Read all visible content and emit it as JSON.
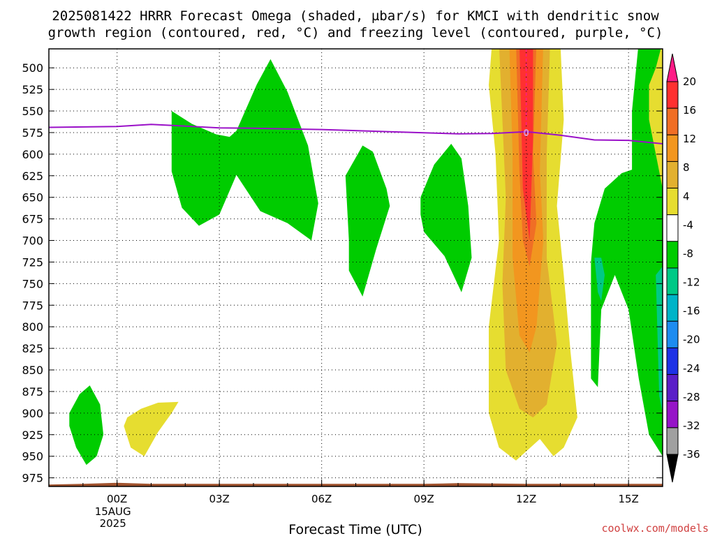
{
  "chart_data": {
    "type": "contour",
    "title_line1": "2025081422 HRRR Forecast Omega (shaded, µbar/s) for KMCI with dendritic snow",
    "title_line2": "growth region (contoured, red, °C) and freezing level (contoured, purple, °C)",
    "xlabel": "Forecast Time (UTC)",
    "x_ticks": [
      {
        "label": "00Z",
        "hour": 2,
        "sub": [
          "15AUG",
          "2025"
        ]
      },
      {
        "label": "03Z",
        "hour": 5,
        "sub": []
      },
      {
        "label": "06Z",
        "hour": 8,
        "sub": []
      },
      {
        "label": "09Z",
        "hour": 11,
        "sub": []
      },
      {
        "label": "12Z",
        "hour": 14,
        "sub": []
      },
      {
        "label": "15Z",
        "hour": 17,
        "sub": []
      }
    ],
    "xlim_hours": [
      0,
      18
    ],
    "ylabel": "",
    "y_axis": "pressure (hPa), inverted",
    "y_ticks": [
      "500",
      "525",
      "550",
      "575",
      "600",
      "625",
      "650",
      "675",
      "700",
      "725",
      "750",
      "775",
      "800",
      "825",
      "850",
      "875",
      "900",
      "925",
      "950",
      "975"
    ],
    "ylim": [
      985,
      478
    ],
    "grid": "dotted",
    "colorbar": {
      "labels": [
        "20",
        "16",
        "12",
        "8",
        "4",
        "-4",
        "-8",
        "-12",
        "-16",
        "-20",
        "-24",
        "-28",
        "-32",
        "-36"
      ],
      "colors": [
        "#ff1b86",
        "#ff3030",
        "#f06e25",
        "#f2961f",
        "#e2b02f",
        "#e6dd30",
        "#ffffff",
        "#00cc00",
        "#00c986",
        "#00b4c8",
        "#1e8cf0",
        "#1e32e6",
        "#5a1ec8",
        "#9614c8",
        "#a0a0a0",
        "#000000"
      ],
      "extend": "both"
    },
    "freezing_level_color": "#9a10c8",
    "freezing_level": [
      [
        0,
        569
      ],
      [
        2,
        568
      ],
      [
        3,
        565.5
      ],
      [
        5,
        569.5
      ],
      [
        6,
        570
      ],
      [
        8,
        571.5
      ],
      [
        10,
        574
      ],
      [
        12,
        576.5
      ],
      [
        13,
        576
      ],
      [
        14,
        574
      ],
      [
        15,
        578
      ],
      [
        16,
        583.5
      ],
      [
        17,
        584
      ],
      [
        18,
        588
      ]
    ],
    "freezing_level_label": "0",
    "terrain_color": "#a0522d",
    "terrain_top_hPa": 982,
    "shaded_regions": [
      {
        "name": "ascent-1",
        "color": "#00cc00",
        "points": [
          [
            3.6,
            550
          ],
          [
            4.2,
            565
          ],
          [
            4.9,
            577
          ],
          [
            5.3,
            580
          ],
          [
            5.5,
            573
          ],
          [
            6.1,
            519
          ],
          [
            6.5,
            490
          ],
          [
            7.0,
            528
          ],
          [
            7.6,
            590
          ],
          [
            7.9,
            657
          ],
          [
            7.7,
            700
          ],
          [
            7.0,
            680
          ],
          [
            6.2,
            666
          ],
          [
            5.5,
            624
          ],
          [
            5.0,
            670
          ],
          [
            4.4,
            683
          ],
          [
            3.9,
            662
          ],
          [
            3.6,
            620
          ]
        ]
      },
      {
        "name": "ascent-2",
        "color": "#00cc00",
        "points": [
          [
            8.7,
            625
          ],
          [
            9.2,
            590
          ],
          [
            9.5,
            597
          ],
          [
            9.9,
            640
          ],
          [
            10.0,
            660
          ],
          [
            9.6,
            710
          ],
          [
            9.2,
            765
          ],
          [
            8.8,
            735
          ],
          [
            8.8,
            700
          ]
        ]
      },
      {
        "name": "ascent-3",
        "color": "#00cc00",
        "points": [
          [
            10.9,
            650
          ],
          [
            11.3,
            612
          ],
          [
            11.8,
            588
          ],
          [
            12.1,
            605
          ],
          [
            12.3,
            660
          ],
          [
            12.4,
            720
          ],
          [
            12.1,
            760
          ],
          [
            11.6,
            718
          ],
          [
            11.0,
            690
          ],
          [
            10.9,
            670
          ]
        ]
      },
      {
        "name": "ascent-4",
        "color": "#00cc00",
        "points": [
          [
            0.6,
            900
          ],
          [
            0.9,
            878
          ],
          [
            1.2,
            868
          ],
          [
            1.5,
            890
          ],
          [
            1.6,
            925
          ],
          [
            1.4,
            950
          ],
          [
            1.1,
            960
          ],
          [
            0.8,
            940
          ],
          [
            0.6,
            915
          ]
        ]
      },
      {
        "name": "ascent-5",
        "color": "#00cc00",
        "points": [
          [
            15.9,
            725
          ],
          [
            16.0,
            680
          ],
          [
            16.3,
            640
          ],
          [
            16.8,
            622
          ],
          [
            17.1,
            618
          ],
          [
            17.1,
            550
          ],
          [
            17.3,
            470
          ],
          [
            18.0,
            470
          ],
          [
            18.0,
            950
          ],
          [
            17.6,
            925
          ],
          [
            17.3,
            860
          ],
          [
            17.0,
            780
          ],
          [
            16.6,
            740
          ],
          [
            16.2,
            780
          ],
          [
            16.1,
            870
          ],
          [
            15.9,
            860
          ]
        ]
      },
      {
        "name": "ascent-6-core",
        "color": "#00c986",
        "points": [
          [
            16.0,
            720
          ],
          [
            16.1,
            760
          ],
          [
            16.2,
            770
          ],
          [
            16.3,
            740
          ],
          [
            16.2,
            720
          ]
        ]
      },
      {
        "name": "ascent-7-right",
        "color": "#00c986",
        "points": [
          [
            17.8,
            740
          ],
          [
            18.0,
            730
          ],
          [
            18.0,
            900
          ],
          [
            17.9,
            880
          ]
        ]
      },
      {
        "name": "sink-1",
        "color": "#e6dd30",
        "points": [
          [
            2.3,
            905
          ],
          [
            2.7,
            895
          ],
          [
            3.2,
            888
          ],
          [
            3.8,
            887
          ],
          [
            3.6,
            900
          ],
          [
            3.2,
            922
          ],
          [
            2.8,
            950
          ],
          [
            2.4,
            940
          ],
          [
            2.2,
            915
          ]
        ]
      },
      {
        "name": "sink-main",
        "color": "#e6dd30",
        "points": [
          [
            13.0,
            470
          ],
          [
            15.0,
            470
          ],
          [
            15.1,
            560
          ],
          [
            14.9,
            660
          ],
          [
            15.1,
            740
          ],
          [
            15.3,
            830
          ],
          [
            15.5,
            905
          ],
          [
            15.1,
            940
          ],
          [
            14.8,
            950
          ],
          [
            14.4,
            930
          ],
          [
            13.7,
            955
          ],
          [
            13.2,
            940
          ],
          [
            12.9,
            900
          ],
          [
            12.9,
            800
          ],
          [
            13.2,
            700
          ],
          [
            13.1,
            600
          ],
          [
            12.9,
            520
          ]
        ]
      },
      {
        "name": "sink-main-8",
        "color": "#e2b02f",
        "points": [
          [
            13.2,
            470
          ],
          [
            14.7,
            470
          ],
          [
            14.6,
            600
          ],
          [
            14.6,
            720
          ],
          [
            14.9,
            820
          ],
          [
            14.6,
            890
          ],
          [
            14.2,
            905
          ],
          [
            13.8,
            895
          ],
          [
            13.4,
            850
          ],
          [
            13.3,
            750
          ],
          [
            13.4,
            650
          ]
        ]
      },
      {
        "name": "sink-main-12",
        "color": "#f2961f",
        "points": [
          [
            13.5,
            470
          ],
          [
            14.5,
            470
          ],
          [
            14.4,
            620
          ],
          [
            14.5,
            700
          ],
          [
            14.3,
            800
          ],
          [
            14.1,
            830
          ],
          [
            13.8,
            810
          ],
          [
            13.6,
            720
          ],
          [
            13.6,
            600
          ]
        ]
      },
      {
        "name": "sink-main-16",
        "color": "#f06e25",
        "points": [
          [
            13.7,
            470
          ],
          [
            14.3,
            470
          ],
          [
            14.2,
            600
          ],
          [
            14.3,
            680
          ],
          [
            14.1,
            730
          ],
          [
            13.9,
            700
          ],
          [
            13.8,
            620
          ]
        ]
      },
      {
        "name": "sink-main-20",
        "color": "#ff3030",
        "points": [
          [
            13.8,
            470
          ],
          [
            14.2,
            470
          ],
          [
            14.2,
            580
          ],
          [
            14.1,
            700
          ],
          [
            13.9,
            640
          ]
        ]
      },
      {
        "name": "sink-right",
        "color": "#e6dd30",
        "points": [
          [
            17.6,
            520
          ],
          [
            17.8,
            500
          ],
          [
            18.0,
            470
          ],
          [
            18.0,
            640
          ],
          [
            17.8,
            600
          ],
          [
            17.6,
            560
          ]
        ]
      }
    ]
  },
  "credit": "coolwx.com/models"
}
